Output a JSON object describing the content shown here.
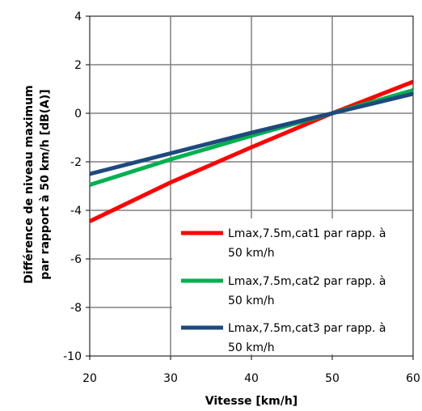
{
  "chart_data": {
    "type": "line",
    "xlabel": "Vitesse [km/h]",
    "ylabel_lines": [
      "Différence de niveau maximum",
      "par rapport à 50 km/h [dB(A)]"
    ],
    "xlim": [
      20,
      60
    ],
    "ylim": [
      -10,
      4
    ],
    "x_ticks": [
      20,
      30,
      40,
      50,
      60
    ],
    "y_ticks": [
      4,
      2,
      0,
      -2,
      -4,
      -6,
      -8,
      -10
    ],
    "grid": true,
    "legend_position": "bottom-right",
    "series": [
      {
        "name": "Lmax,7.5m,cat1 par rapp. à 50 km/h",
        "legend_lines": [
          "Lmax,7.5m,cat1 par rapp. à",
          "50 km/h"
        ],
        "color": "#ff0000",
        "x": [
          20,
          30,
          40,
          50,
          60
        ],
        "values": [
          -4.45,
          -2.85,
          -1.4,
          0,
          1.3
        ]
      },
      {
        "name": "Lmax,7.5m,cat2 par rapp. à 50 km/h",
        "legend_lines": [
          "Lmax,7.5m,cat2 par rapp. à",
          "50 km/h"
        ],
        "color": "#00b050",
        "x": [
          20,
          30,
          40,
          50,
          60
        ],
        "values": [
          -2.95,
          -1.9,
          -0.93,
          0,
          0.95
        ]
      },
      {
        "name": "Lmax,7.5m,cat3 par rapp. à 50 km/h",
        "legend_lines": [
          "Lmax,7.5m,cat3 par rapp. à",
          "50 km/h"
        ],
        "color": "#1f497d",
        "x": [
          20,
          30,
          40,
          50,
          60
        ],
        "values": [
          -2.5,
          -1.65,
          -0.8,
          0,
          0.8
        ]
      }
    ]
  }
}
